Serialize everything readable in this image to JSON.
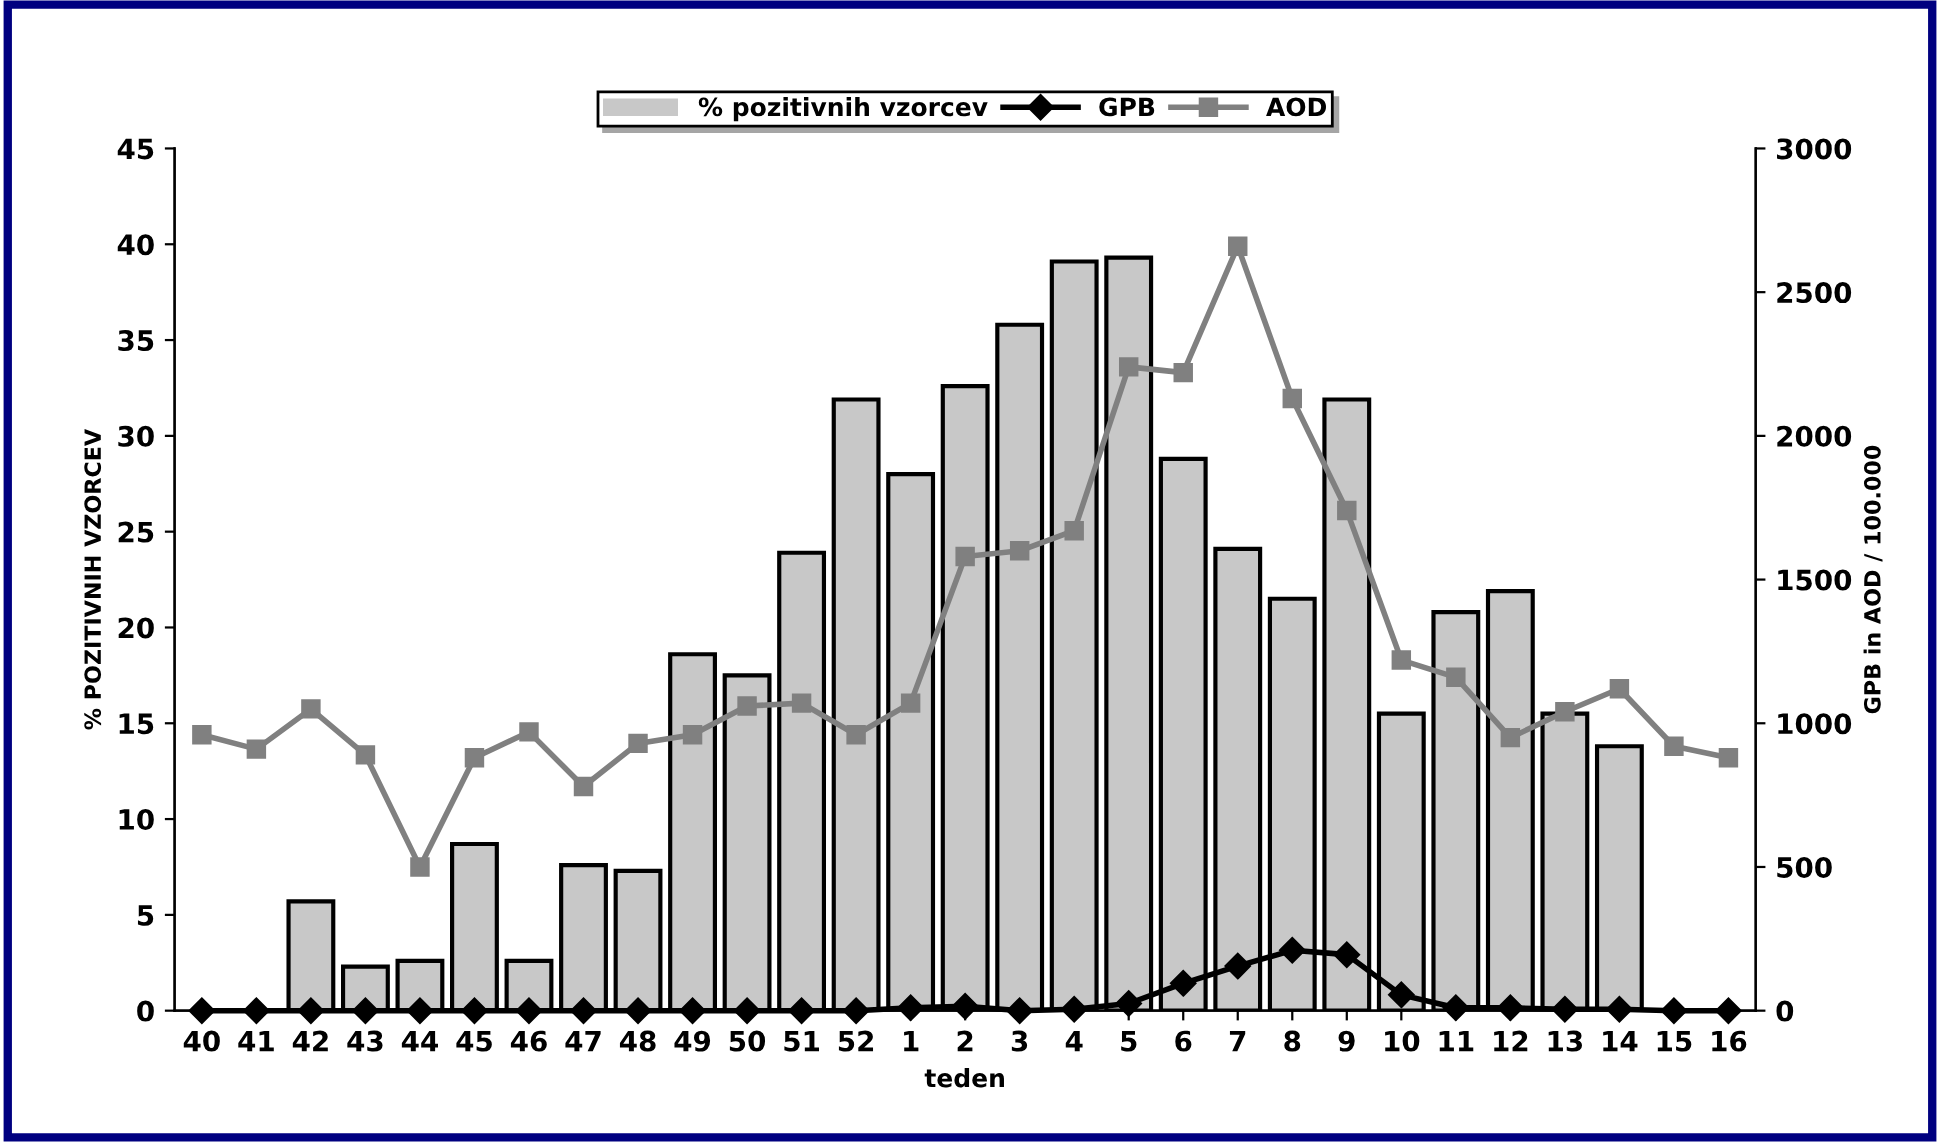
{
  "chart_data": {
    "type": "bar",
    "xlabel": "teden",
    "ylabel": "% POZITIVNIH VZORCEV",
    "y2label": "GPB in AOD / 100.000",
    "categories": [
      "40",
      "41",
      "42",
      "43",
      "44",
      "45",
      "46",
      "47",
      "48",
      "49",
      "50",
      "51",
      "52",
      "1",
      "2",
      "3",
      "4",
      "5",
      "6",
      "7",
      "8",
      "9",
      "10",
      "11",
      "12",
      "13",
      "14",
      "15",
      "16"
    ],
    "series": [
      {
        "name": "% pozitivnih vzorcev",
        "color": "#c8c8c8",
        "values": [
          0,
          0,
          5.7,
          2.3,
          2.6,
          8.7,
          2.6,
          7.6,
          7.3,
          18.6,
          17.5,
          23.9,
          31.9,
          28.0,
          32.6,
          35.8,
          39.1,
          39.3,
          28.8,
          24.1,
          21.5,
          31.9,
          15.5,
          20.8,
          21.9,
          15.5,
          13.8,
          0,
          0
        ]
      },
      {
        "name": "GPB",
        "type": "line",
        "axis": "y2",
        "color": "#000000",
        "marker": "diamond",
        "values": [
          0,
          0,
          0,
          0,
          0,
          0,
          0,
          0,
          0,
          0,
          0,
          0,
          0,
          10,
          15,
          0,
          5,
          25,
          95,
          155,
          210,
          195,
          55,
          10,
          10,
          5,
          5,
          0,
          0
        ]
      },
      {
        "name": "AOD",
        "type": "line",
        "axis": "y2",
        "color": "#808080",
        "marker": "square",
        "values": [
          960,
          910,
          1050,
          890,
          500,
          880,
          970,
          780,
          930,
          960,
          1060,
          1070,
          960,
          1070,
          1580,
          1600,
          1670,
          2240,
          2220,
          2660,
          2130,
          1740,
          1220,
          1160,
          950,
          1040,
          1120,
          920,
          880
        ]
      }
    ],
    "ylim": [
      0,
      45
    ],
    "yticks": [
      0,
      5,
      10,
      15,
      20,
      25,
      30,
      35,
      40,
      45
    ],
    "y2lim": [
      0,
      3000
    ],
    "y2ticks": [
      0,
      500,
      1000,
      1500,
      2000,
      2500,
      3000
    ],
    "grid": false,
    "legend": "top"
  }
}
